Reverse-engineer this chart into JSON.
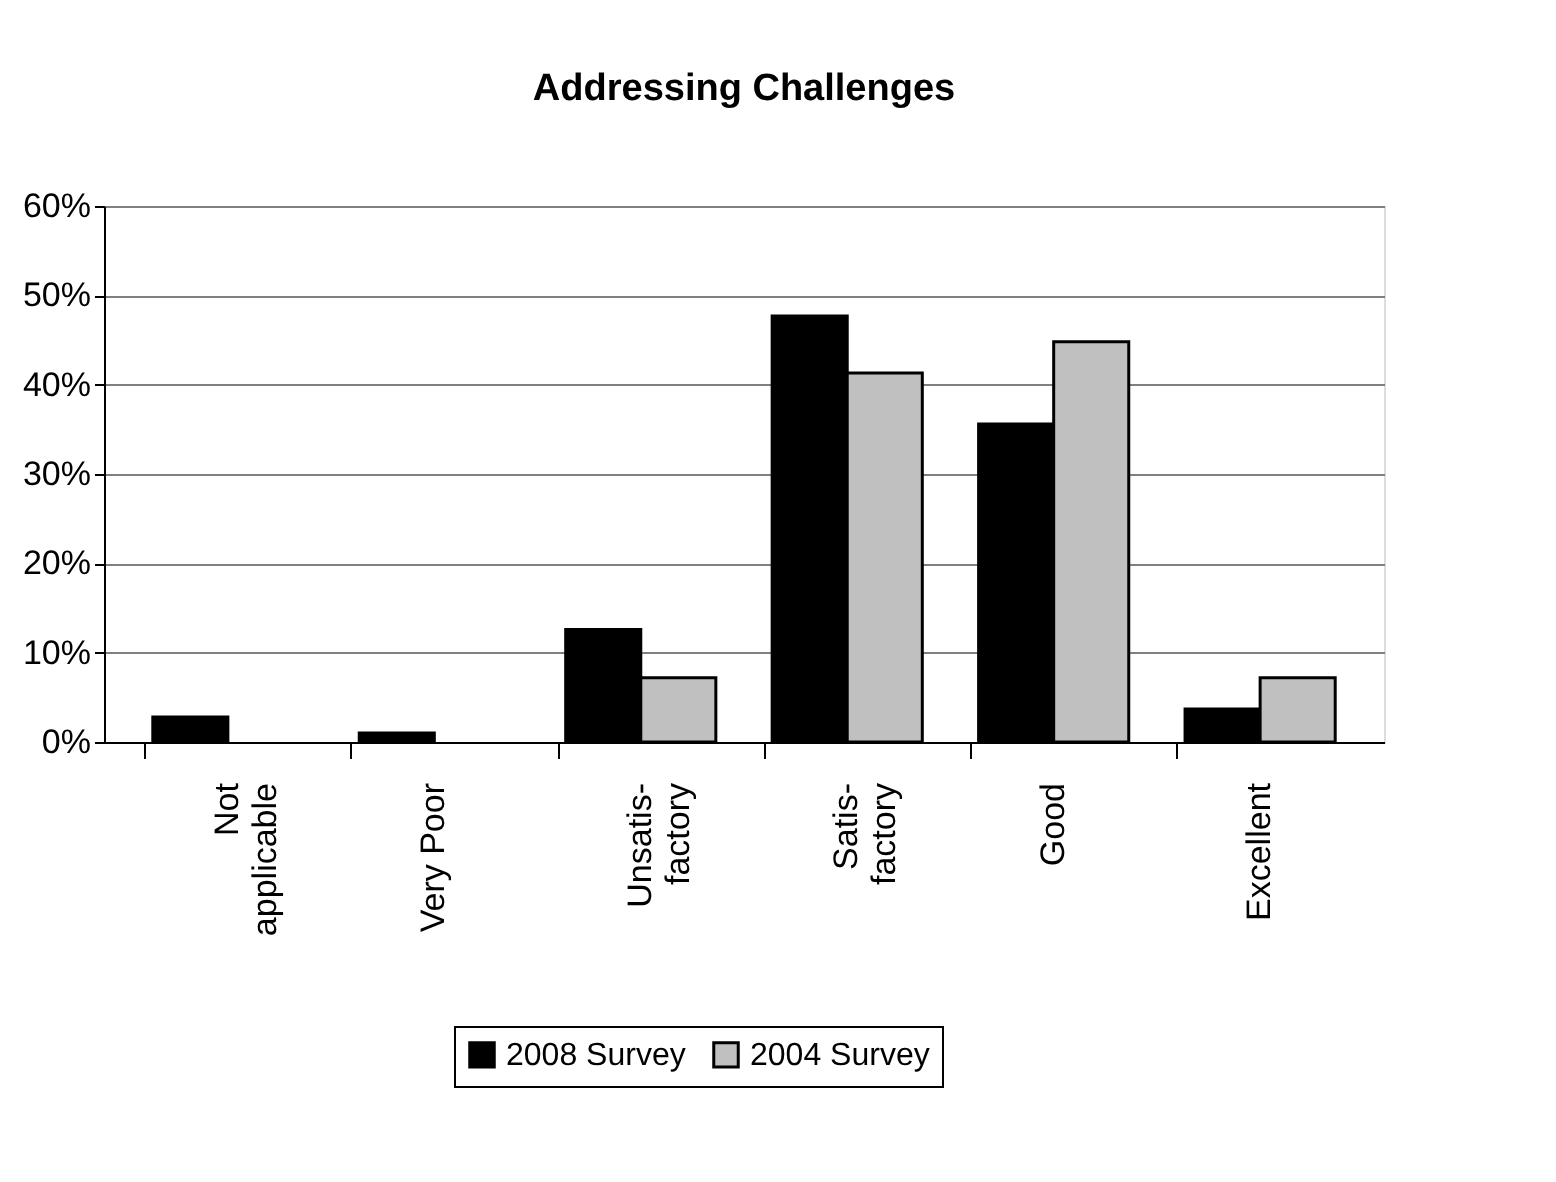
{
  "chart_data": {
    "type": "bar",
    "title": "Addressing Challenges",
    "categories": [
      "Not\napplicable",
      "Very Poor",
      "Unsatis-\nfactory",
      "Satis-\nfactory",
      "Good",
      "Excellent"
    ],
    "series": [
      {
        "name": "2008 Survey",
        "color": "#000000",
        "values": [
          2.8,
          1.0,
          12.6,
          47.7,
          35.6,
          3.7
        ]
      },
      {
        "name": "2004 Survey",
        "color": "#c0c0c0",
        "values": [
          null,
          null,
          7.2,
          41.3,
          44.8,
          7.2
        ]
      }
    ],
    "ylim": [
      0,
      60
    ],
    "yticks": [
      {
        "value": 0,
        "label": "0%"
      },
      {
        "value": 10,
        "label": "10%"
      },
      {
        "value": 20,
        "label": "20%"
      },
      {
        "value": 30,
        "label": "30%"
      },
      {
        "value": 40,
        "label": "40%"
      },
      {
        "value": 50,
        "label": "50%"
      },
      {
        "value": 60,
        "label": "60%"
      }
    ],
    "grid": "y",
    "legend": "bottom"
  }
}
